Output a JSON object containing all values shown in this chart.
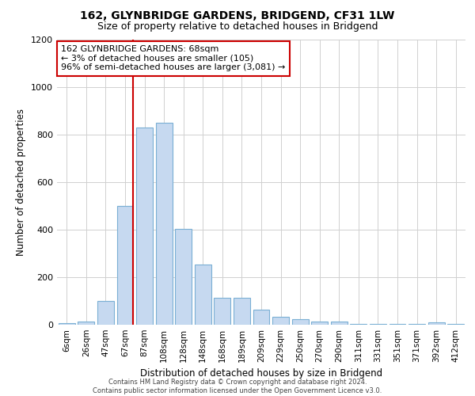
{
  "title": "162, GLYNBRIDGE GARDENS, BRIDGEND, CF31 1LW",
  "subtitle": "Size of property relative to detached houses in Bridgend",
  "xlabel": "Distribution of detached houses by size in Bridgend",
  "ylabel": "Number of detached properties",
  "categories": [
    "6sqm",
    "26sqm",
    "47sqm",
    "67sqm",
    "87sqm",
    "108sqm",
    "128sqm",
    "148sqm",
    "168sqm",
    "189sqm",
    "209sqm",
    "229sqm",
    "250sqm",
    "270sqm",
    "290sqm",
    "311sqm",
    "331sqm",
    "351sqm",
    "371sqm",
    "392sqm",
    "412sqm"
  ],
  "values": [
    8,
    12,
    100,
    500,
    830,
    850,
    405,
    255,
    115,
    115,
    65,
    32,
    22,
    14,
    14,
    5,
    5,
    5,
    5,
    10,
    5
  ],
  "bar_color": "#c6d9f0",
  "bar_edge_color": "#7aafd4",
  "vline_color": "#cc0000",
  "annotation_line1": "162 GLYNBRIDGE GARDENS: 68sqm",
  "annotation_line2": "← 3% of detached houses are smaller (105)",
  "annotation_line3": "96% of semi-detached houses are larger (3,081) →",
  "annotation_box_color": "#ffffff",
  "annotation_box_edge": "#cc0000",
  "ylim": [
    0,
    1200
  ],
  "yticks": [
    0,
    200,
    400,
    600,
    800,
    1000,
    1200
  ],
  "footer_line1": "Contains HM Land Registry data © Crown copyright and database right 2024.",
  "footer_line2": "Contains public sector information licensed under the Open Government Licence v3.0.",
  "background_color": "#ffffff",
  "grid_color": "#d0d0d0",
  "title_fontsize": 10,
  "subtitle_fontsize": 9
}
